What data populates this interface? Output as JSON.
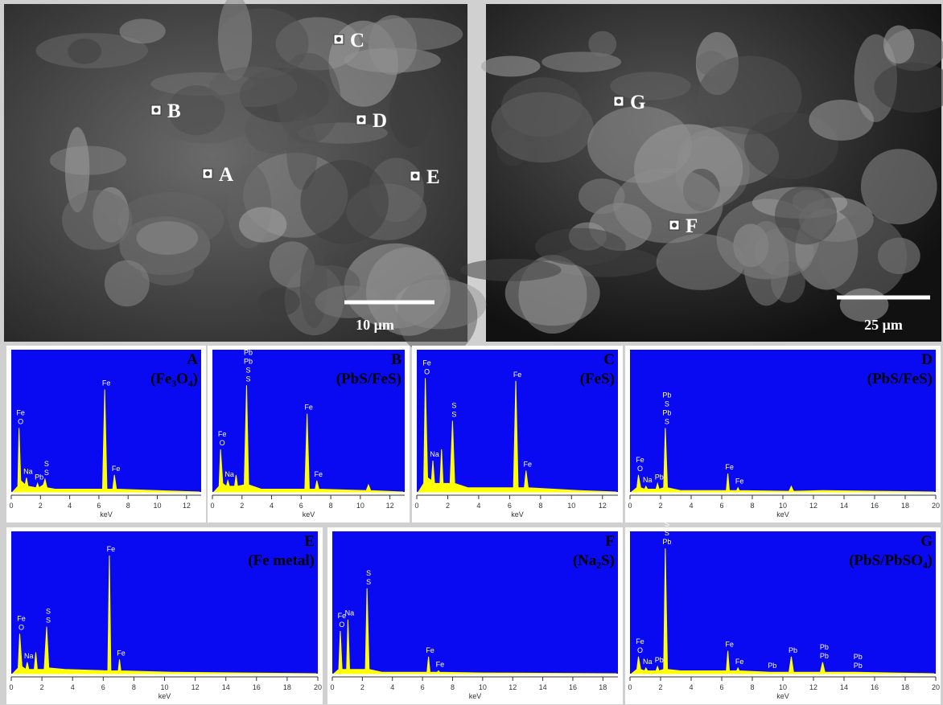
{
  "sem_images": [
    {
      "markers": [
        "A",
        "B",
        "C",
        "D",
        "E"
      ],
      "scale_bar": "10 μm"
    },
    {
      "markers": [
        "G",
        "F"
      ],
      "scale_bar": "25 μm"
    }
  ],
  "chart_data": [
    {
      "type": "line",
      "title": "A",
      "subtitle": "(Fe₃O₄)",
      "xlabel": "keV",
      "color": "#ffff00",
      "background": "#0a0af2",
      "xlim": [
        0,
        13
      ],
      "ylim": [
        0,
        100
      ],
      "xticks": [
        0,
        2,
        4,
        6,
        8,
        10,
        12
      ],
      "x": [
        0.1,
        0.45,
        0.53,
        0.65,
        0.95,
        1.04,
        1.15,
        1.7,
        1.8,
        1.9,
        2.2,
        2.31,
        2.45,
        3.0,
        6.25,
        6.4,
        6.55,
        6.95,
        7.06,
        7.2,
        10,
        12.9
      ],
      "values": [
        0,
        4,
        45,
        8,
        5,
        10,
        4,
        3,
        6,
        3,
        5,
        9,
        3,
        2,
        2,
        72,
        2,
        2,
        12,
        2,
        1,
        0
      ],
      "annotations": [
        {
          "text": "O",
          "x": 0.53
        },
        {
          "text": "Fe",
          "x": 0.53
        },
        {
          "text": "Na",
          "x": 1.04
        },
        {
          "text": "Pb",
          "x": 1.8
        },
        {
          "text": "S",
          "x": 2.31
        },
        {
          "text": "S",
          "x": 2.31
        },
        {
          "text": "Fe",
          "x": 6.4
        },
        {
          "text": "Fe",
          "x": 7.06
        }
      ]
    },
    {
      "type": "line",
      "title": "B",
      "subtitle": "(PbS/FeS)",
      "xlabel": "keV",
      "color": "#ffff00",
      "background": "#0a0af2",
      "xlim": [
        0,
        13
      ],
      "ylim": [
        0,
        100
      ],
      "xticks": [
        0,
        2,
        4,
        6,
        8,
        10,
        12
      ],
      "x": [
        0.1,
        0.45,
        0.55,
        0.7,
        0.95,
        1.04,
        1.15,
        1.5,
        1.6,
        1.7,
        2.15,
        2.31,
        2.45,
        3.3,
        6.25,
        6.4,
        6.55,
        6.95,
        7.06,
        7.2,
        10.4,
        10.55,
        10.7,
        12.9
      ],
      "values": [
        0,
        4,
        30,
        6,
        4,
        8,
        4,
        4,
        12,
        4,
        5,
        75,
        5,
        2,
        2,
        55,
        2,
        2,
        8,
        2,
        1,
        5,
        1,
        0
      ],
      "annotations": [
        {
          "text": "O",
          "x": 0.55
        },
        {
          "text": "Fe",
          "x": 0.55
        },
        {
          "text": "Na",
          "x": 1.04
        },
        {
          "text": "S",
          "x": 2.31
        },
        {
          "text": "S",
          "x": 2.31
        },
        {
          "text": "Pb",
          "x": 2.31
        },
        {
          "text": "Pb",
          "x": 2.31
        },
        {
          "text": "Fe",
          "x": 6.4
        },
        {
          "text": "Fe",
          "x": 7.06
        }
      ]
    },
    {
      "type": "line",
      "title": "C",
      "subtitle": "(FeS)",
      "xlabel": "keV",
      "color": "#ffff00",
      "background": "#0a0af2",
      "xlim": [
        0,
        13
      ],
      "ylim": [
        0,
        100
      ],
      "xticks": [
        0,
        2,
        4,
        6,
        8,
        10,
        12
      ],
      "x": [
        0.1,
        0.45,
        0.55,
        0.7,
        0.95,
        1.04,
        1.15,
        1.5,
        1.6,
        1.7,
        2.15,
        2.31,
        2.45,
        3.3,
        6.25,
        6.4,
        6.55,
        6.95,
        7.06,
        7.2,
        10.5,
        12.9
      ],
      "values": [
        0,
        6,
        80,
        10,
        8,
        22,
        6,
        6,
        30,
        6,
        6,
        50,
        6,
        3,
        3,
        78,
        3,
        3,
        15,
        3,
        1,
        0
      ],
      "annotations": [
        {
          "text": "O",
          "x": 0.55
        },
        {
          "text": "Fe",
          "x": 0.55
        },
        {
          "text": "Na",
          "x": 1.04
        },
        {
          "text": "S",
          "x": 2.31
        },
        {
          "text": "S",
          "x": 2.31
        },
        {
          "text": "Fe",
          "x": 6.4
        },
        {
          "text": "Fe",
          "x": 7.06
        }
      ]
    },
    {
      "type": "line",
      "title": "D",
      "subtitle": "(PbS/FeS)",
      "xlabel": "keV",
      "color": "#ffff00",
      "background": "#0a0af2",
      "xlim": [
        0,
        20
      ],
      "ylim": [
        0,
        100
      ],
      "xticks": [
        0,
        2,
        4,
        6,
        8,
        10,
        12,
        14,
        16,
        18,
        20
      ],
      "x": [
        0.1,
        0.45,
        0.55,
        0.7,
        0.95,
        1.04,
        1.15,
        1.7,
        1.8,
        1.9,
        2.2,
        2.31,
        2.45,
        3.3,
        6.3,
        6.4,
        6.5,
        6.98,
        7.06,
        7.15,
        10.4,
        10.55,
        10.7,
        12.6,
        19.9
      ],
      "values": [
        0,
        3,
        12,
        3,
        2,
        4,
        2,
        2,
        6,
        2,
        3,
        45,
        3,
        1,
        1,
        13,
        1,
        1,
        3,
        1,
        0.5,
        4,
        0.5,
        1,
        0
      ],
      "annotations": [
        {
          "text": "O",
          "x": 0.55
        },
        {
          "text": "Fe",
          "x": 0.55
        },
        {
          "text": "Na",
          "x": 1.04
        },
        {
          "text": "Pb",
          "x": 1.8
        },
        {
          "text": "S",
          "x": 2.31
        },
        {
          "text": "Pb",
          "x": 2.31
        },
        {
          "text": "S",
          "x": 2.31
        },
        {
          "text": "Pb",
          "x": 2.31
        },
        {
          "text": "Fe",
          "x": 6.4
        },
        {
          "text": "Fe",
          "x": 7.06
        }
      ]
    },
    {
      "type": "line",
      "title": "E",
      "subtitle": "(Fe metal)",
      "xlabel": "keV",
      "color": "#ffff00",
      "background": "#0a0af2",
      "xlim": [
        0,
        20
      ],
      "ylim": [
        0,
        100
      ],
      "xticks": [
        0,
        2,
        4,
        6,
        8,
        10,
        12,
        14,
        16,
        18,
        20
      ],
      "x": [
        0.1,
        0.45,
        0.55,
        0.7,
        0.95,
        1.04,
        1.15,
        1.5,
        1.6,
        1.7,
        2.15,
        2.31,
        2.45,
        3.5,
        6.3,
        6.4,
        6.5,
        6.98,
        7.06,
        7.15,
        10.5,
        19.9
      ],
      "values": [
        0,
        4,
        28,
        5,
        3,
        8,
        3,
        3,
        15,
        3,
        3,
        33,
        4,
        3,
        2,
        83,
        2,
        2,
        10,
        2,
        1,
        0
      ],
      "annotations": [
        {
          "text": "O",
          "x": 0.55
        },
        {
          "text": "Fe",
          "x": 0.55
        },
        {
          "text": "Na",
          "x": 1.04
        },
        {
          "text": "S",
          "x": 2.31
        },
        {
          "text": "S",
          "x": 2.31
        },
        {
          "text": "Fe",
          "x": 6.4
        },
        {
          "text": "Fe",
          "x": 7.06
        }
      ]
    },
    {
      "type": "line",
      "title": "F",
      "subtitle": "(Na₂S)",
      "xlabel": "keV",
      "color": "#ffff00",
      "background": "#0a0af2",
      "xlim": [
        0,
        19
      ],
      "ylim": [
        0,
        100
      ],
      "xticks": [
        0,
        2,
        4,
        6,
        8,
        10,
        12,
        14,
        16,
        18
      ],
      "x": [
        0.1,
        0.43,
        0.53,
        0.65,
        0.95,
        1.04,
        1.15,
        2.2,
        2.31,
        2.45,
        3.3,
        6.3,
        6.4,
        6.5,
        6.98,
        7.06,
        7.15,
        10,
        18.9
      ],
      "values": [
        0,
        3,
        30,
        3,
        3,
        38,
        3,
        3,
        60,
        3,
        1,
        1,
        12,
        1,
        1,
        2,
        1,
        0.5,
        0
      ],
      "annotations": [
        {
          "text": "O",
          "x": 0.53
        },
        {
          "text": "Fe",
          "x": 0.53
        },
        {
          "text": "Na",
          "x": 1.04
        },
        {
          "text": "S",
          "x": 2.31
        },
        {
          "text": "S",
          "x": 2.31
        },
        {
          "text": "Fe",
          "x": 6.4
        },
        {
          "text": "Fe",
          "x": 7.06
        }
      ]
    },
    {
      "type": "line",
      "title": "G",
      "subtitle": "(PbS/PbSO₄)",
      "xlabel": "keV",
      "color": "#ffff00",
      "background": "#0a0af2",
      "xlim": [
        0,
        20
      ],
      "ylim": [
        0,
        100
      ],
      "xticks": [
        0,
        2,
        4,
        6,
        8,
        10,
        12,
        14,
        16,
        18,
        20
      ],
      "x": [
        0.1,
        0.45,
        0.55,
        0.7,
        0.95,
        1.04,
        1.15,
        1.7,
        1.8,
        1.9,
        2.2,
        2.31,
        2.45,
        3.3,
        6.3,
        6.4,
        6.5,
        6.98,
        7.06,
        7.15,
        9.2,
        10.4,
        10.55,
        10.7,
        12.45,
        12.6,
        12.75,
        14.8,
        19.9
      ],
      "values": [
        0,
        3,
        12,
        3,
        2,
        4,
        2,
        2,
        5,
        2,
        3,
        88,
        3,
        2,
        2,
        16,
        2,
        2,
        4,
        2,
        1,
        1,
        12,
        1,
        1,
        8,
        1,
        1,
        0
      ],
      "annotations": [
        {
          "text": "O",
          "x": 0.55
        },
        {
          "text": "Fe",
          "x": 0.55
        },
        {
          "text": "Na",
          "x": 1.04
        },
        {
          "text": "Pb",
          "x": 1.8
        },
        {
          "text": "Pb",
          "x": 2.31
        },
        {
          "text": "S",
          "x": 2.31
        },
        {
          "text": "S",
          "x": 2.31
        },
        {
          "text": "Pb",
          "x": 2.31
        },
        {
          "text": "Fe",
          "x": 6.4
        },
        {
          "text": "Fe",
          "x": 7.06
        },
        {
          "text": "Pb",
          "x": 9.2
        },
        {
          "text": "Pb",
          "x": 10.55
        },
        {
          "text": "Pb",
          "x": 12.6
        },
        {
          "text": "Pb",
          "x": 12.6
        },
        {
          "text": "Pb",
          "x": 14.8
        },
        {
          "text": "Pb",
          "x": 14.8
        }
      ]
    }
  ]
}
